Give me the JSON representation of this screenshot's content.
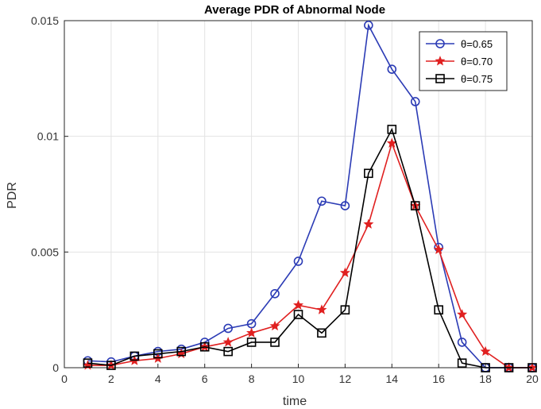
{
  "chart_data": {
    "type": "line",
    "title": "Average PDR of Abnormal Node",
    "xlabel": "time",
    "ylabel": "PDR",
    "xlim": [
      0,
      20
    ],
    "ylim": [
      0,
      0.015
    ],
    "xticks": [
      "0",
      "2",
      "4",
      "6",
      "8",
      "10",
      "12",
      "14",
      "16",
      "18",
      "20"
    ],
    "yticks": [
      "0",
      "0.005",
      "0.01",
      "0.015"
    ],
    "grid": true,
    "legend_position": "top-right",
    "x": [
      1,
      2,
      3,
      4,
      5,
      6,
      7,
      8,
      9,
      10,
      11,
      12,
      13,
      14,
      15,
      16,
      17,
      18,
      19,
      20
    ],
    "series": [
      {
        "name": "θ=0.65",
        "color": "#2b3bb5",
        "marker": "circle",
        "values": [
          0.0003,
          0.00025,
          0.0005,
          0.0007,
          0.0008,
          0.0011,
          0.0017,
          0.0019,
          0.0032,
          0.0046,
          0.0072,
          0.007,
          0.0148,
          0.0129,
          0.0115,
          0.0052,
          0.0011,
          0.0,
          0.0,
          0.0
        ]
      },
      {
        "name": "θ=0.70",
        "color": "#e02020",
        "marker": "star",
        "values": [
          0.0001,
          0.0001,
          0.0003,
          0.0004,
          0.0006,
          0.0009,
          0.0011,
          0.0015,
          0.0018,
          0.0027,
          0.0025,
          0.0041,
          0.0062,
          0.0097,
          0.007,
          0.0051,
          0.0023,
          0.0007,
          0.0,
          0.0
        ]
      },
      {
        "name": "θ=0.75",
        "color": "#000000",
        "marker": "square",
        "values": [
          0.0002,
          0.0001,
          0.0005,
          0.0006,
          0.0007,
          0.0009,
          0.0007,
          0.0011,
          0.0011,
          0.0023,
          0.0015,
          0.0025,
          0.0084,
          0.0103,
          0.007,
          0.0025,
          0.0002,
          0.0,
          0.0,
          0.0
        ]
      }
    ]
  }
}
